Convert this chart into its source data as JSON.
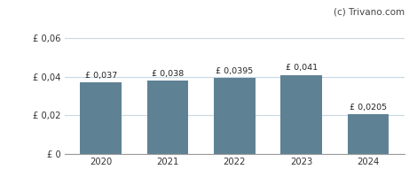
{
  "categories": [
    "2020",
    "2021",
    "2022",
    "2023",
    "2024"
  ],
  "values": [
    0.037,
    0.038,
    0.0395,
    0.041,
    0.0205
  ],
  "labels": [
    "£ 0,037",
    "£ 0,038",
    "£ 0,0395",
    "£ 0,041",
    "£ 0,0205"
  ],
  "bar_color": "#5f8194",
  "ylim": [
    0,
    0.068
  ],
  "yticks": [
    0,
    0.02,
    0.04,
    0.06
  ],
  "ytick_labels": [
    "£ 0",
    "£ 0,02",
    "£ 0,04",
    "£ 0,06"
  ],
  "watermark": "(c) Trivano.com",
  "background_color": "#ffffff",
  "grid_color": "#c8d8e4",
  "bar_width": 0.62,
  "label_fontsize": 6.8,
  "tick_fontsize": 7.2
}
